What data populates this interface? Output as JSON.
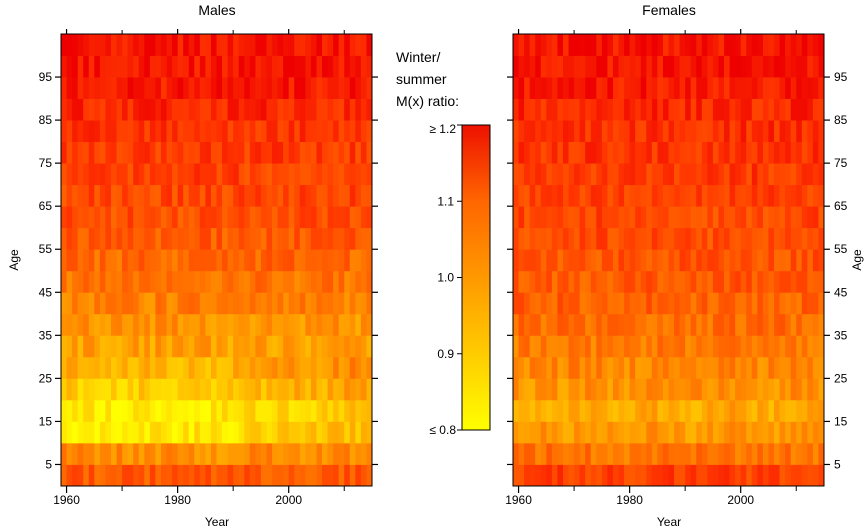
{
  "chart_data": [
    {
      "type": "heatmap",
      "panel": "males",
      "title": "Males",
      "xlabel": "Year",
      "ylabel": "Age",
      "xlim": [
        1959,
        2015
      ],
      "ylim": [
        0,
        105
      ],
      "x_ticks": [
        1960,
        1980,
        2000
      ],
      "y_ticks": [
        5,
        15,
        25,
        35,
        45,
        55,
        65,
        75,
        85,
        95
      ],
      "age_groups": [
        "0-4",
        "5-9",
        "10-14",
        "15-19",
        "20-24",
        "25-29",
        "30-34",
        "35-39",
        "40-44",
        "45-49",
        "50-54",
        "55-59",
        "60-64",
        "65-69",
        "70-74",
        "75-79",
        "80-84",
        "85-89",
        "90-94",
        "95-99",
        "100+"
      ],
      "typical_ratio_by_age_group": [
        1.06,
        0.98,
        0.84,
        0.83,
        0.88,
        0.92,
        0.95,
        0.97,
        1.0,
        1.02,
        1.04,
        1.06,
        1.08,
        1.09,
        1.1,
        1.11,
        1.12,
        1.14,
        1.16,
        1.17,
        1.17
      ]
    },
    {
      "type": "heatmap",
      "panel": "females",
      "title": "Females",
      "xlabel": "Year",
      "ylabel": "Age",
      "xlim": [
        1959,
        2015
      ],
      "ylim": [
        0,
        105
      ],
      "x_ticks": [
        1960,
        1980,
        2000
      ],
      "y_ticks": [
        5,
        15,
        25,
        35,
        45,
        55,
        65,
        75,
        85,
        95
      ],
      "age_groups": [
        "0-4",
        "5-9",
        "10-14",
        "15-19",
        "20-24",
        "25-29",
        "30-34",
        "35-39",
        "40-44",
        "45-49",
        "50-54",
        "55-59",
        "60-64",
        "65-69",
        "70-74",
        "75-79",
        "80-84",
        "85-89",
        "90-94",
        "95-99",
        "100+"
      ],
      "typical_ratio_by_age_group": [
        1.1,
        1.02,
        0.96,
        0.94,
        0.97,
        0.99,
        1.01,
        1.03,
        1.05,
        1.06,
        1.07,
        1.08,
        1.09,
        1.1,
        1.11,
        1.12,
        1.13,
        1.14,
        1.16,
        1.17,
        1.17
      ]
    }
  ],
  "legend": {
    "title_lines": [
      "Winter/",
      "summer",
      "M(x) ratio:"
    ],
    "min": 0.8,
    "max": 1.2,
    "tick_values": [
      0.9,
      1.0,
      1.1
    ],
    "tick_labels": [
      "0.9",
      "1.0",
      "1.1"
    ],
    "max_label": "≥ 1.2",
    "min_label": "≤ 0.8",
    "colors": [
      "#ffff00",
      "#ffcc00",
      "#ff9900",
      "#ff6600",
      "#ff3300",
      "#ee0000"
    ]
  }
}
